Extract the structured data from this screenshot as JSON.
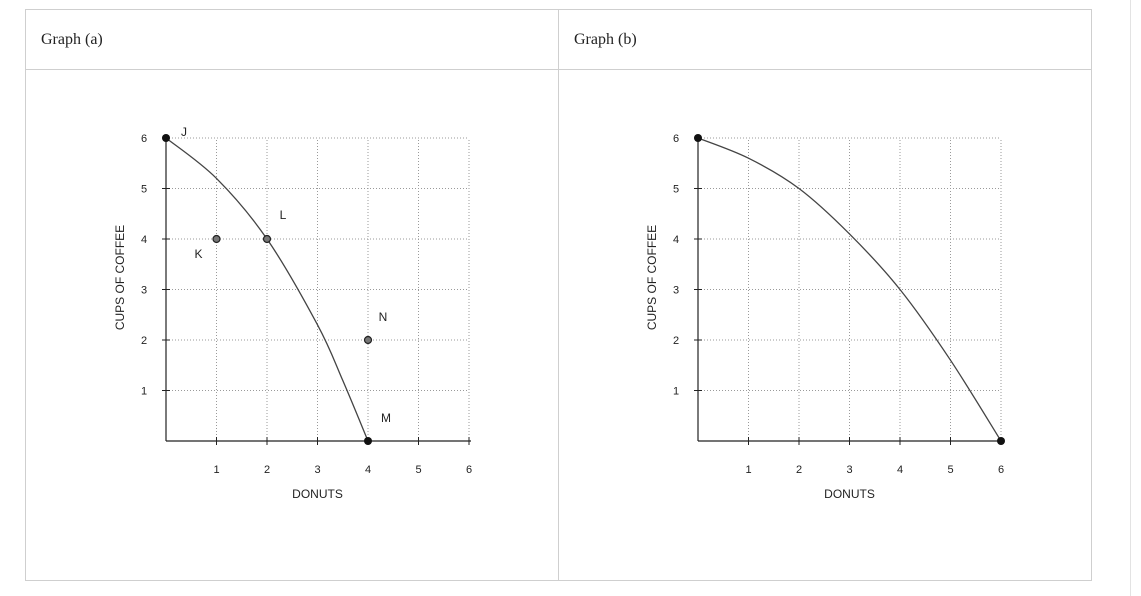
{
  "chart_data": [
    {
      "type": "line",
      "title": "Graph (a)",
      "xlabel": "DONUTS",
      "ylabel": "CUPS OF COFFEE",
      "xlim": [
        0,
        6
      ],
      "ylim": [
        0,
        6
      ],
      "xticks": [
        "1",
        "2",
        "3",
        "4",
        "5",
        "6"
      ],
      "yticks": [
        "1",
        "2",
        "3",
        "4",
        "5",
        "6"
      ],
      "grid": true,
      "curve": [
        {
          "x": 0,
          "y": 6
        },
        {
          "x": 1,
          "y": 5.2
        },
        {
          "x": 2,
          "y": 4
        },
        {
          "x": 3,
          "y": 2.3
        },
        {
          "x": 3.5,
          "y": 1.2
        },
        {
          "x": 4,
          "y": 0
        }
      ],
      "points": [
        {
          "label": "J",
          "x": 0,
          "y": 6,
          "filled": true
        },
        {
          "label": "K",
          "x": 1,
          "y": 4,
          "filled": false
        },
        {
          "label": "L",
          "x": 2,
          "y": 4,
          "filled": false
        },
        {
          "label": "N",
          "x": 4,
          "y": 2,
          "filled": false
        },
        {
          "label": "M",
          "x": 4,
          "y": 0,
          "filled": true
        }
      ]
    },
    {
      "type": "line",
      "title": "Graph (b)",
      "xlabel": "DONUTS",
      "ylabel": "CUPS OF COFFEE",
      "xlim": [
        0,
        6
      ],
      "ylim": [
        0,
        6
      ],
      "xticks": [
        "1",
        "2",
        "3",
        "4",
        "5",
        "6"
      ],
      "yticks": [
        "1",
        "2",
        "3",
        "4",
        "5",
        "6"
      ],
      "grid": true,
      "curve": [
        {
          "x": 0,
          "y": 6
        },
        {
          "x": 1,
          "y": 5.6
        },
        {
          "x": 2,
          "y": 5
        },
        {
          "x": 3,
          "y": 4.1
        },
        {
          "x": 4,
          "y": 3
        },
        {
          "x": 5,
          "y": 1.6
        },
        {
          "x": 6,
          "y": 0
        }
      ],
      "points": [
        {
          "label": "",
          "x": 0,
          "y": 6,
          "filled": true
        },
        {
          "label": "",
          "x": 6,
          "y": 0,
          "filled": true
        }
      ]
    }
  ]
}
